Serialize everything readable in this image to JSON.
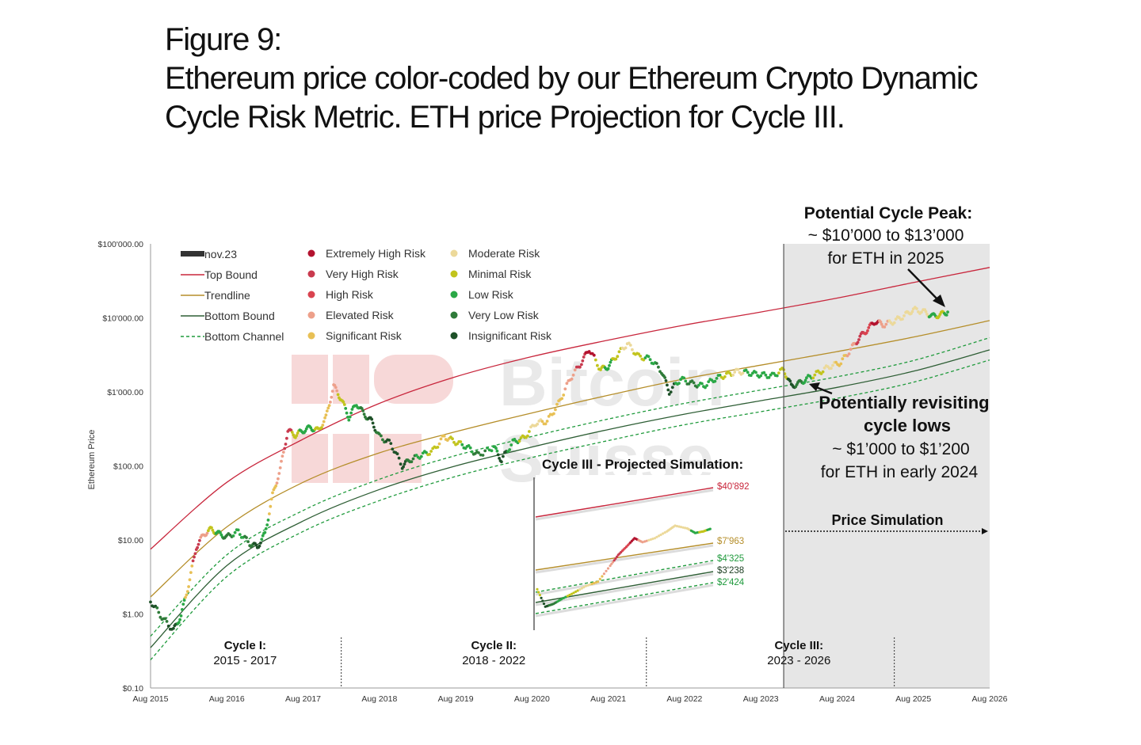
{
  "figure": {
    "number_label": "Figure 9:",
    "caption_line1": "Ethereum price color-coded by our Ethereum Crypto Dynamic",
    "caption_line2": "Cycle Risk Metric. ETH price Projection for Cycle III."
  },
  "colors": {
    "top_bound": "#c8263c",
    "trendline": "#b58e2a",
    "bottom_bound": "#2e5e35",
    "bottom_channel": "#1f9a3c",
    "simulation_shade": "#e6e6e6",
    "risk": {
      "extremely_high": "#b3132f",
      "very_high": "#c93a4e",
      "high": "#d9434f",
      "elevated": "#eda08a",
      "significant": "#e8c055",
      "moderate": "#ecd99a",
      "minimal": "#c2c41d",
      "low": "#2aa846",
      "very_low": "#2f7b39",
      "insignificant": "#1e5128"
    }
  },
  "watermark": {
    "line1": "Bitcoin",
    "line2": "Suisse"
  },
  "chart_data": {
    "type": "scatter",
    "title": "Ethereum price color-coded by our Ethereum Crypto Dynamic Cycle Risk Metric",
    "xlabel": "",
    "ylabel": "Ethereum Price",
    "yscale": "log",
    "ylim": [
      0.1,
      100000
    ],
    "xlim": [
      2015.6,
      2026.6
    ],
    "x_ticks": [
      {
        "label": "Aug 2015",
        "x": 2015.6
      },
      {
        "label": "Aug 2016",
        "x": 2016.6
      },
      {
        "label": "Aug 2017",
        "x": 2017.6
      },
      {
        "label": "Aug 2018",
        "x": 2018.6
      },
      {
        "label": "Aug 2019",
        "x": 2019.6
      },
      {
        "label": "Aug 2020",
        "x": 2020.6
      },
      {
        "label": "Aug 2021",
        "x": 2021.6
      },
      {
        "label": "Aug 2022",
        "x": 2022.6
      },
      {
        "label": "Aug 2023",
        "x": 2023.6
      },
      {
        "label": "Aug 2024",
        "x": 2024.6
      },
      {
        "label": "Aug 2025",
        "x": 2025.6
      },
      {
        "label": "Aug 2026",
        "x": 2026.6
      }
    ],
    "y_ticks": [
      {
        "label": "$100'000.00",
        "v": 100000
      },
      {
        "label": "$10'000.00",
        "v": 10000
      },
      {
        "label": "$1'000.00",
        "v": 1000
      },
      {
        "label": "$100.00",
        "v": 100
      },
      {
        "label": "$10.00",
        "v": 10
      },
      {
        "label": "$1.00",
        "v": 1
      },
      {
        "label": "$0.10",
        "v": 0.1
      }
    ],
    "legend": {
      "lines": [
        {
          "label": "nov.23",
          "style": "bar"
        },
        {
          "label": "Top Bound",
          "style": "top"
        },
        {
          "label": "Trendline",
          "style": "trend"
        },
        {
          "label": "Bottom Bound",
          "style": "bottom"
        },
        {
          "label": "Bottom Channel",
          "style": "channel"
        }
      ],
      "risk_levels": [
        {
          "label": "Extremely High Risk",
          "key": "extremely_high"
        },
        {
          "label": "Very High Risk",
          "key": "very_high"
        },
        {
          "label": "High Risk",
          "key": "high"
        },
        {
          "label": "Elevated Risk",
          "key": "elevated"
        },
        {
          "label": "Significant Risk",
          "key": "significant"
        },
        {
          "label": "Moderate Risk",
          "key": "moderate"
        },
        {
          "label": "Minimal Risk",
          "key": "minimal"
        },
        {
          "label": "Low Risk",
          "key": "low"
        },
        {
          "label": "Very Low Risk",
          "key": "very_low"
        },
        {
          "label": "Insignificant Risk",
          "key": "insignificant"
        }
      ]
    },
    "bands": {
      "top_bound": [
        [
          2015.6,
          7.5
        ],
        [
          2016.6,
          60
        ],
        [
          2017.6,
          230
        ],
        [
          2018.6,
          700
        ],
        [
          2019.6,
          1600
        ],
        [
          2020.6,
          3000
        ],
        [
          2021.6,
          5000
        ],
        [
          2022.6,
          8000
        ],
        [
          2023.6,
          12000
        ],
        [
          2024.6,
          18500
        ],
        [
          2025.6,
          30000
        ],
        [
          2026.6,
          48000
        ]
      ],
      "trendline": [
        [
          2015.6,
          1.7
        ],
        [
          2016.6,
          15
        ],
        [
          2017.6,
          60
        ],
        [
          2018.6,
          150
        ],
        [
          2019.6,
          290
        ],
        [
          2020.6,
          520
        ],
        [
          2021.6,
          900
        ],
        [
          2022.6,
          1500
        ],
        [
          2023.6,
          2300
        ],
        [
          2024.6,
          3500
        ],
        [
          2025.6,
          5500
        ],
        [
          2026.6,
          9200
        ]
      ],
      "bottom_bound": [
        [
          2015.6,
          0.35
        ],
        [
          2016.6,
          4.5
        ],
        [
          2017.6,
          18
        ],
        [
          2018.6,
          48
        ],
        [
          2019.6,
          100
        ],
        [
          2020.6,
          180
        ],
        [
          2021.6,
          310
        ],
        [
          2022.6,
          500
        ],
        [
          2023.6,
          760
        ],
        [
          2024.6,
          1150
        ],
        [
          2025.6,
          1900
        ],
        [
          2026.6,
          3700
        ]
      ],
      "channel_upper": [
        [
          2015.6,
          0.5
        ],
        [
          2016.6,
          6.3
        ],
        [
          2017.6,
          25
        ],
        [
          2018.6,
          66
        ],
        [
          2019.6,
          138
        ],
        [
          2020.6,
          250
        ],
        [
          2021.6,
          430
        ],
        [
          2022.6,
          700
        ],
        [
          2023.6,
          1060
        ],
        [
          2024.6,
          1600
        ],
        [
          2025.6,
          2650
        ],
        [
          2026.6,
          5400
        ]
      ],
      "channel_lower": [
        [
          2015.6,
          0.24
        ],
        [
          2016.6,
          3.2
        ],
        [
          2017.6,
          13
        ],
        [
          2018.6,
          34
        ],
        [
          2019.6,
          72
        ],
        [
          2020.6,
          130
        ],
        [
          2021.6,
          220
        ],
        [
          2022.6,
          360
        ],
        [
          2023.6,
          540
        ],
        [
          2024.6,
          820
        ],
        [
          2025.6,
          1350
        ],
        [
          2026.6,
          2700
        ]
      ]
    },
    "price_series": [
      [
        2015.6,
        1.5,
        "insignificant"
      ],
      [
        2015.75,
        0.9,
        "very_low"
      ],
      [
        2015.9,
        0.6,
        "insignificant"
      ],
      [
        2016.0,
        0.95,
        "low"
      ],
      [
        2016.1,
        2.5,
        "significant"
      ],
      [
        2016.2,
        8,
        "very_high"
      ],
      [
        2016.3,
        12,
        "elevated"
      ],
      [
        2016.4,
        14,
        "minimal"
      ],
      [
        2016.5,
        12,
        "low"
      ],
      [
        2016.6,
        11,
        "very_low"
      ],
      [
        2016.75,
        13,
        "low"
      ],
      [
        2016.9,
        9,
        "very_low"
      ],
      [
        2017.0,
        8,
        "insignificant"
      ],
      [
        2017.1,
        12,
        "low"
      ],
      [
        2017.2,
        40,
        "significant"
      ],
      [
        2017.3,
        90,
        "elevated"
      ],
      [
        2017.4,
        300,
        "very_high"
      ],
      [
        2017.5,
        260,
        "minimal"
      ],
      [
        2017.6,
        300,
        "low"
      ],
      [
        2017.7,
        330,
        "low"
      ],
      [
        2017.8,
        300,
        "minimal"
      ],
      [
        2017.9,
        450,
        "significant"
      ],
      [
        2018.0,
        1200,
        "elevated"
      ],
      [
        2018.1,
        800,
        "minimal"
      ],
      [
        2018.2,
        450,
        "low"
      ],
      [
        2018.3,
        700,
        "low"
      ],
      [
        2018.4,
        500,
        "very_low"
      ],
      [
        2018.5,
        400,
        "insignificant"
      ],
      [
        2018.6,
        250,
        "very_low"
      ],
      [
        2018.75,
        200,
        "insignificant"
      ],
      [
        2018.9,
        100,
        "insignificant"
      ],
      [
        2019.0,
        120,
        "very_low"
      ],
      [
        2019.15,
        140,
        "low"
      ],
      [
        2019.3,
        160,
        "minimal"
      ],
      [
        2019.45,
        250,
        "significant"
      ],
      [
        2019.6,
        210,
        "minimal"
      ],
      [
        2019.75,
        180,
        "low"
      ],
      [
        2019.9,
        140,
        "very_low"
      ],
      [
        2020.1,
        180,
        "low"
      ],
      [
        2020.2,
        120,
        "insignificant"
      ],
      [
        2020.35,
        210,
        "low"
      ],
      [
        2020.5,
        240,
        "minimal"
      ],
      [
        2020.65,
        380,
        "moderate"
      ],
      [
        2020.8,
        400,
        "significant"
      ],
      [
        2020.95,
        700,
        "significant"
      ],
      [
        2021.1,
        1500,
        "elevated"
      ],
      [
        2021.25,
        2500,
        "very_high"
      ],
      [
        2021.35,
        3800,
        "extremely_high"
      ],
      [
        2021.5,
        2000,
        "minimal"
      ],
      [
        2021.6,
        2200,
        "low"
      ],
      [
        2021.7,
        3000,
        "minimal"
      ],
      [
        2021.85,
        4500,
        "moderate"
      ],
      [
        2022.0,
        3000,
        "minimal"
      ],
      [
        2022.15,
        2800,
        "low"
      ],
      [
        2022.3,
        1900,
        "very_low"
      ],
      [
        2022.4,
        1000,
        "insignificant"
      ],
      [
        2022.55,
        1500,
        "low"
      ],
      [
        2022.7,
        1300,
        "very_low"
      ],
      [
        2022.85,
        1200,
        "low"
      ],
      [
        2023.0,
        1500,
        "low"
      ],
      [
        2023.15,
        1700,
        "minimal"
      ],
      [
        2023.3,
        1900,
        "moderate"
      ],
      [
        2023.45,
        1800,
        "low"
      ],
      [
        2023.6,
        1700,
        "low"
      ],
      [
        2023.75,
        1650,
        "low"
      ],
      [
        2023.9,
        2000,
        "minimal"
      ],
      [
        2024.0,
        1200,
        "insignificant"
      ],
      [
        2024.1,
        1300,
        "very_low"
      ],
      [
        2024.2,
        1500,
        "low"
      ],
      [
        2024.35,
        1800,
        "minimal"
      ],
      [
        2024.5,
        2200,
        "moderate"
      ],
      [
        2024.65,
        2500,
        "significant"
      ],
      [
        2024.8,
        4000,
        "elevated"
      ],
      [
        2024.9,
        5500,
        "very_high"
      ],
      [
        2025.0,
        7000,
        "high"
      ],
      [
        2025.1,
        9000,
        "extremely_high"
      ],
      [
        2025.2,
        8000,
        "elevated"
      ],
      [
        2025.35,
        9000,
        "moderate"
      ],
      [
        2025.5,
        11000,
        "moderate"
      ],
      [
        2025.6,
        13000,
        "moderate"
      ],
      [
        2025.75,
        12000,
        "moderate"
      ],
      [
        2025.85,
        10500,
        "low"
      ],
      [
        2025.95,
        11000,
        "minimal"
      ],
      [
        2026.05,
        12000,
        "low"
      ]
    ],
    "annotations": {
      "peak_title": "Potential Cycle Peak:",
      "peak_range": "~ $10’000 to $13’000",
      "peak_when": "for ETH in 2025",
      "lows_line1": "Potentially revisiting",
      "lows_line2": "cycle lows",
      "lows_range": "~ $1’000 to $1’200",
      "lows_when": "for ETH in early 2024",
      "price_simulation": "Price Simulation"
    },
    "cycles": [
      {
        "name": "Cycle I:",
        "years": "2015 - 2017",
        "x": 2016.84
      },
      {
        "name": "Cycle II:",
        "years": "2018 - 2022",
        "x": 2020.1
      },
      {
        "name": "Cycle III:",
        "years": "2023 - 2026",
        "x": 2024.1
      }
    ],
    "cycle_dividers": [
      2018.1,
      2022.1,
      2025.35
    ],
    "simulation_start": 2023.9,
    "inset": {
      "title": "Cycle III - Projected Simulation:",
      "end_values": [
        {
          "label": "$40'892",
          "series": "top"
        },
        {
          "label": "$7'963",
          "series": "trend"
        },
        {
          "label": "$4'325",
          "series": "channel_upper"
        },
        {
          "label": "$3'238",
          "series": "bottom"
        },
        {
          "label": "$2'424",
          "series": "channel_lower"
        }
      ]
    }
  }
}
